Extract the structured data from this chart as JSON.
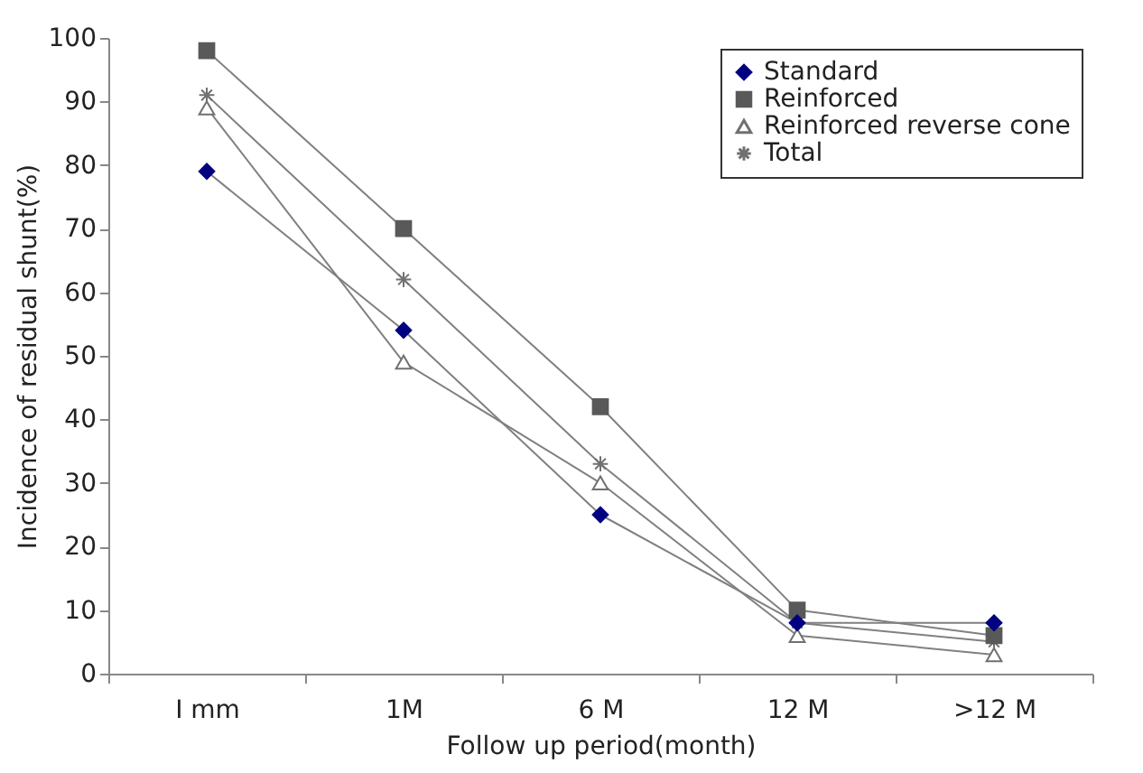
{
  "chart_data": {
    "type": "line",
    "xlabel": "Follow up period(month)",
    "ylabel": "Incidence of residual shunt(%)",
    "categories": [
      "I mm",
      "1M",
      "6 M",
      "12 M",
      ">12 M"
    ],
    "series": [
      {
        "name": "Standard",
        "color": "#000080",
        "marker": "diamond",
        "values": [
          79,
          54,
          25,
          8,
          8
        ]
      },
      {
        "name": "Reinforced",
        "color": "#595959",
        "marker": "square",
        "values": [
          98,
          70,
          42,
          10,
          6
        ]
      },
      {
        "name": "Reinforced reverse cone",
        "color": "#707070",
        "marker": "triangle",
        "values": [
          89,
          49,
          30,
          6,
          3
        ]
      },
      {
        "name": "Total",
        "color": "#707070",
        "marker": "cross",
        "values": [
          91,
          62,
          33,
          8,
          5
        ]
      }
    ],
    "ylim": [
      0,
      100
    ],
    "yticks": [
      0,
      10,
      20,
      30,
      40,
      50,
      60,
      70,
      80,
      90,
      100
    ],
    "grid": false,
    "legend": "top right"
  }
}
